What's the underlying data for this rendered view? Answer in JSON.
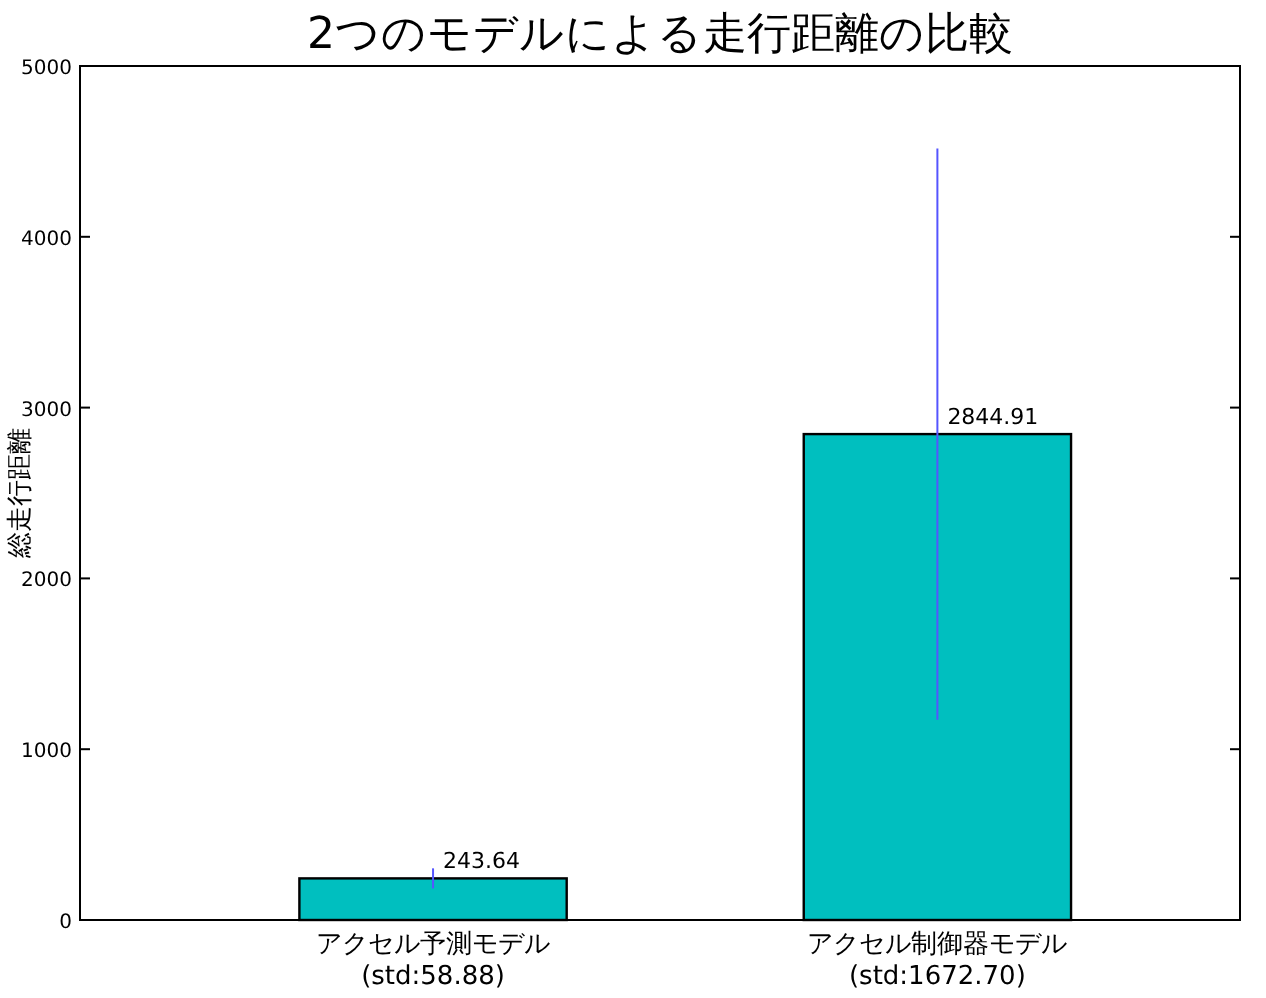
{
  "chart_data": {
    "type": "bar",
    "title": "2つのモデルによる走行距離の比較",
    "ylabel": "総走行距離",
    "categories": [
      "アクセル予測モデル\n(std:58.88)",
      "アクセル制御器モデル\n(std:1672.70)"
    ],
    "values": [
      243.64,
      2844.91
    ],
    "errors": [
      58.88,
      1672.7
    ],
    "color": "#00bfbf",
    "ylim": [
      0,
      5000
    ],
    "yticks": [
      0,
      1000,
      2000,
      3000,
      4000,
      5000
    ],
    "data_labels": true
  }
}
